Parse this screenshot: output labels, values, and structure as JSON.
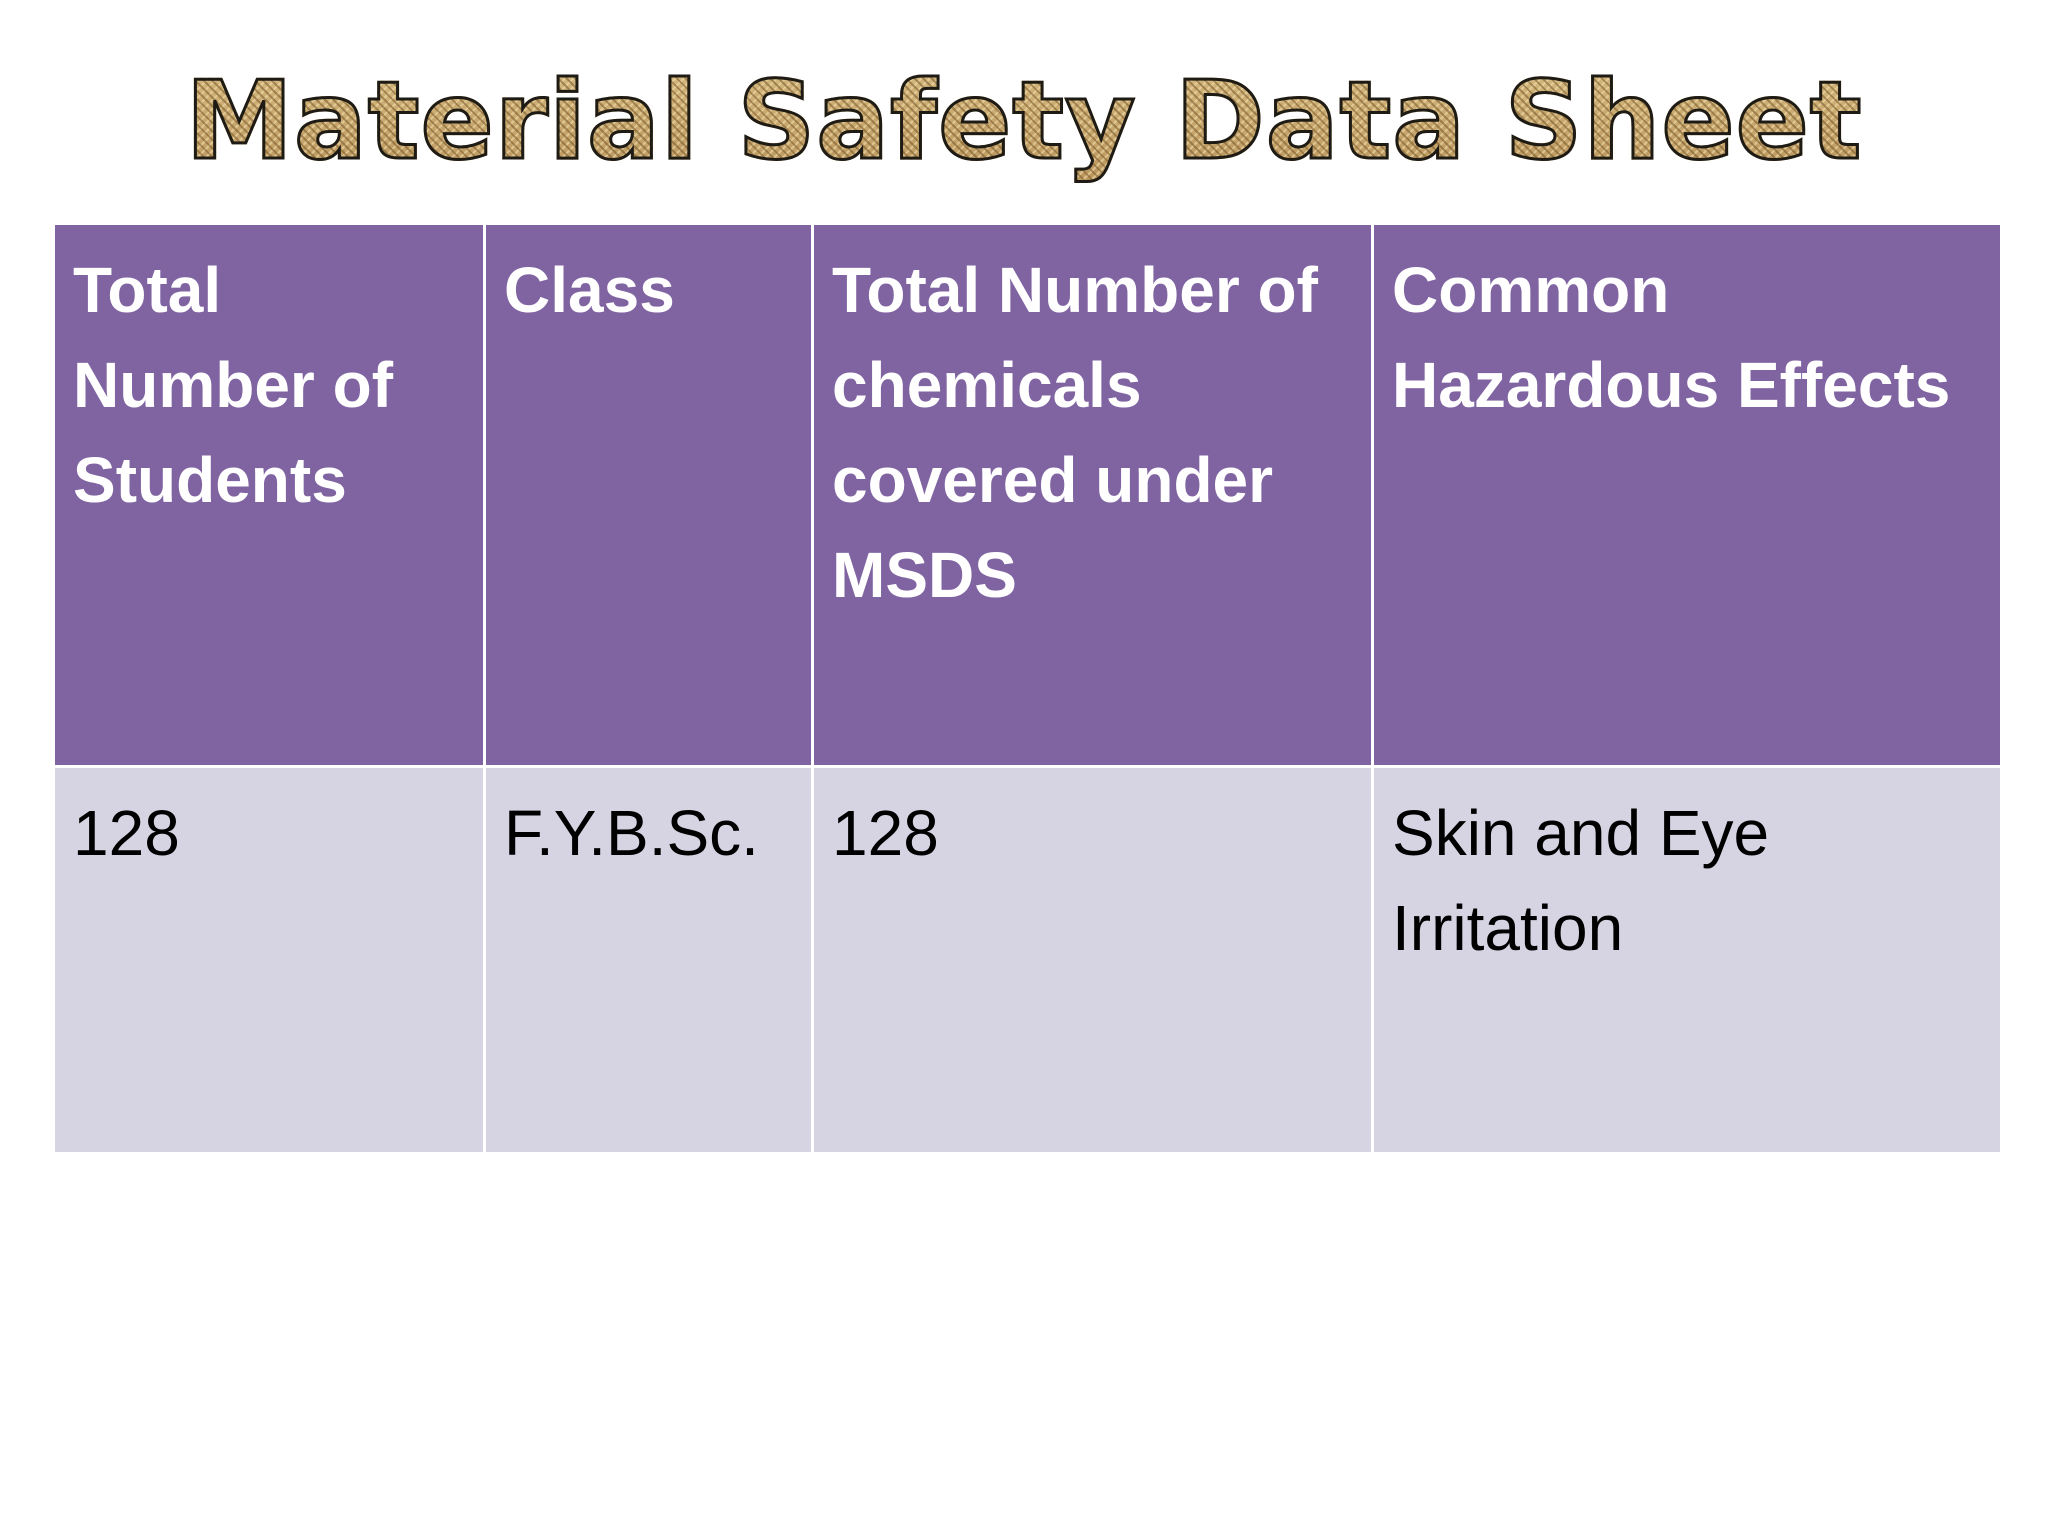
{
  "slide": {
    "title": "Material Safety Data Sheet"
  },
  "table": {
    "headers": [
      "Total Number of Students",
      "Class",
      "Total Number of chemicals covered under MSDS",
      "Common Hazardous Effects"
    ],
    "rows": [
      [
        "128",
        "F.Y.B.Sc.",
        "128",
        "Skin and Eye Irritation"
      ]
    ]
  },
  "colors": {
    "header_background": "#8064a2",
    "row_background": "#d6d4e3",
    "header_text": "#ffffff",
    "body_text": "#000000",
    "title_fill": "#c9aa6e"
  }
}
